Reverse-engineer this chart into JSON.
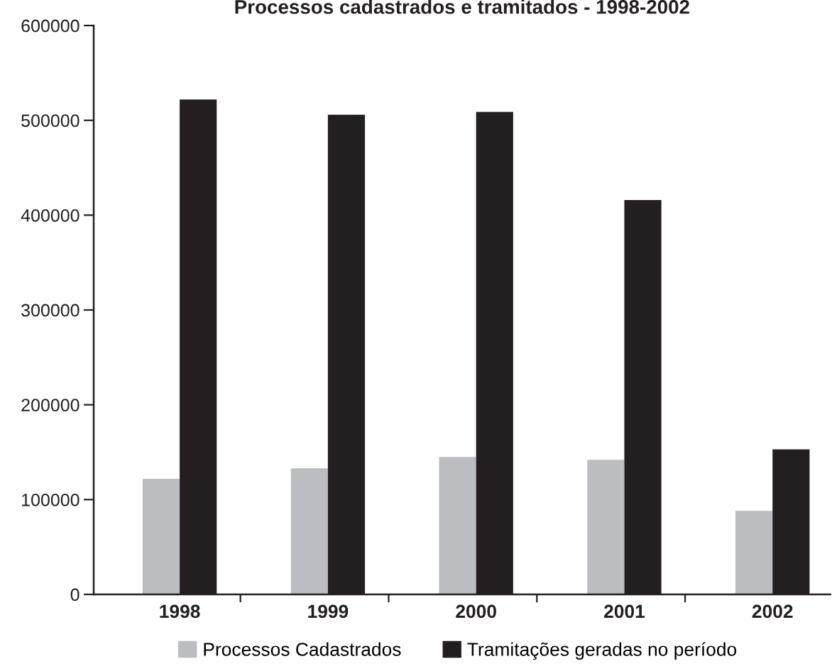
{
  "chart_data": {
    "type": "bar",
    "title": "Processos cadastrados e tramitados - 1998-2002",
    "categories": [
      "1998",
      "1999",
      "2000",
      "2001",
      "2002"
    ],
    "series": [
      {
        "name": "Processos Cadastrados",
        "color": "#bcbdc1",
        "values": [
          122000,
          133000,
          145000,
          142000,
          88000
        ]
      },
      {
        "name": "Tramitações geradas no período",
        "color": "#231f20",
        "values": [
          522000,
          506000,
          509000,
          416000,
          153000
        ]
      }
    ],
    "ylim": [
      0,
      600000
    ],
    "yticks": [
      0,
      100000,
      200000,
      300000,
      400000,
      500000,
      600000
    ],
    "legend": "bottom",
    "grid": false
  }
}
